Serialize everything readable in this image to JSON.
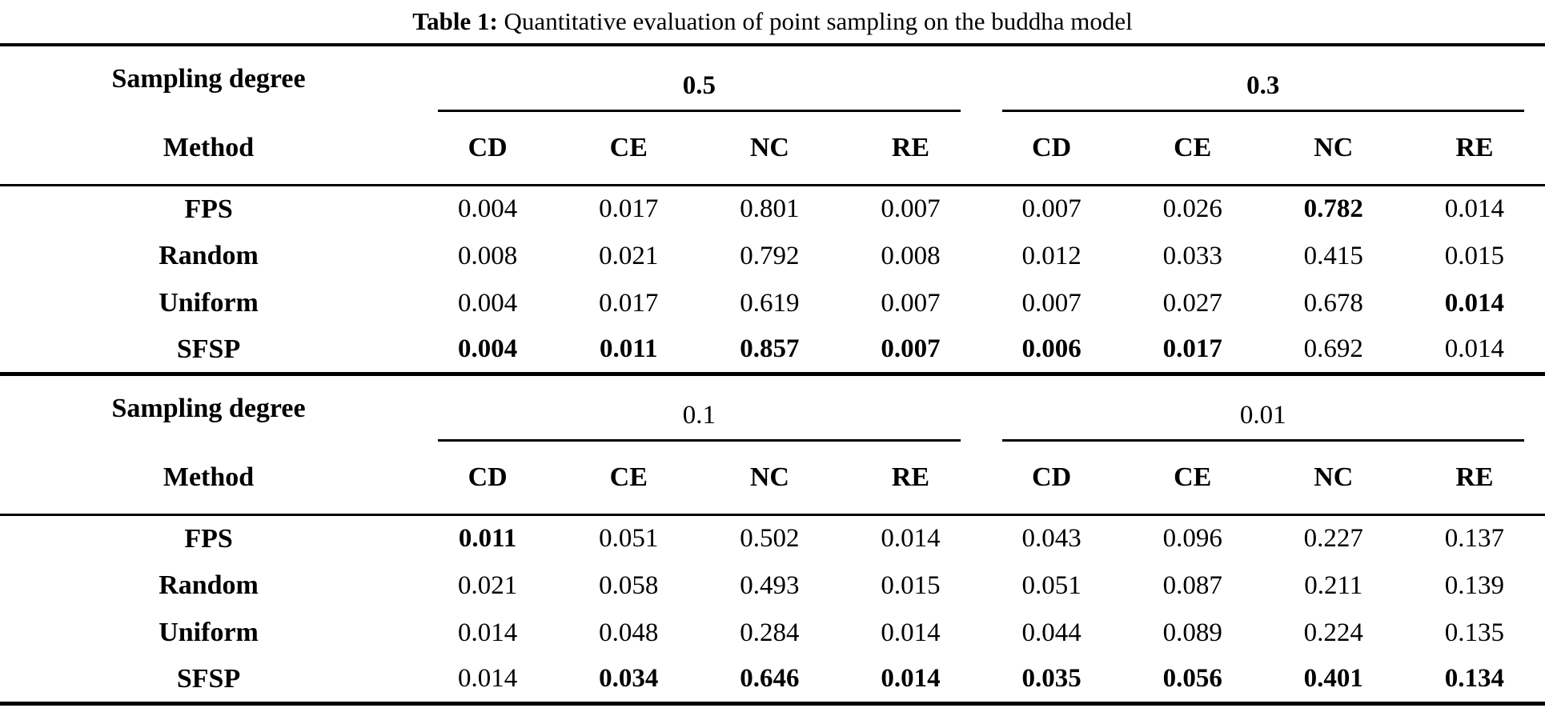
{
  "title": {
    "label": "Table 1:",
    "text": " Quantitative evaluation of point sampling on the buddha model"
  },
  "table": {
    "corner_header": "Sampling degree",
    "method_header": "Method",
    "metrics": [
      "CD",
      "CE",
      "NC",
      "RE"
    ],
    "blocks": [
      {
        "degrees": [
          {
            "label": "0.5",
            "bold": true
          },
          {
            "label": "0.3",
            "bold": true
          }
        ],
        "rows": [
          {
            "method": "FPS",
            "values": [
              "0.004",
              "0.017",
              "0.801",
              "0.007",
              "0.007",
              "0.026",
              "0.782",
              "0.014"
            ],
            "bold": [
              false,
              false,
              false,
              false,
              false,
              false,
              true,
              false
            ]
          },
          {
            "method": "Random",
            "values": [
              "0.008",
              "0.021",
              "0.792",
              "0.008",
              "0.012",
              "0.033",
              "0.415",
              "0.015"
            ],
            "bold": [
              false,
              false,
              false,
              false,
              false,
              false,
              false,
              false
            ]
          },
          {
            "method": "Uniform",
            "values": [
              "0.004",
              "0.017",
              "0.619",
              "0.007",
              "0.007",
              "0.027",
              "0.678",
              "0.014"
            ],
            "bold": [
              false,
              false,
              false,
              false,
              false,
              false,
              false,
              true
            ]
          },
          {
            "method": "SFSP",
            "values": [
              "0.004",
              "0.011",
              "0.857",
              "0.007",
              "0.006",
              "0.017",
              "0.692",
              "0.014"
            ],
            "bold": [
              true,
              true,
              true,
              true,
              true,
              true,
              false,
              false
            ]
          }
        ]
      },
      {
        "degrees": [
          {
            "label": "0.1",
            "bold": false
          },
          {
            "label": "0.01",
            "bold": false
          }
        ],
        "rows": [
          {
            "method": "FPS",
            "values": [
              "0.011",
              "0.051",
              "0.502",
              "0.014",
              "0.043",
              "0.096",
              "0.227",
              "0.137"
            ],
            "bold": [
              true,
              false,
              false,
              false,
              false,
              false,
              false,
              false
            ]
          },
          {
            "method": "Random",
            "values": [
              "0.021",
              "0.058",
              "0.493",
              "0.015",
              "0.051",
              "0.087",
              "0.211",
              "0.139"
            ],
            "bold": [
              false,
              false,
              false,
              false,
              false,
              false,
              false,
              false
            ]
          },
          {
            "method": "Uniform",
            "values": [
              "0.014",
              "0.048",
              "0.284",
              "0.014",
              "0.044",
              "0.089",
              "0.224",
              "0.135"
            ],
            "bold": [
              false,
              false,
              false,
              false,
              false,
              false,
              false,
              false
            ]
          },
          {
            "method": "SFSP",
            "values": [
              "0.014",
              "0.034",
              "0.646",
              "0.014",
              "0.035",
              "0.056",
              "0.401",
              "0.134"
            ],
            "bold": [
              false,
              true,
              true,
              true,
              true,
              true,
              true,
              true
            ]
          }
        ]
      }
    ]
  }
}
